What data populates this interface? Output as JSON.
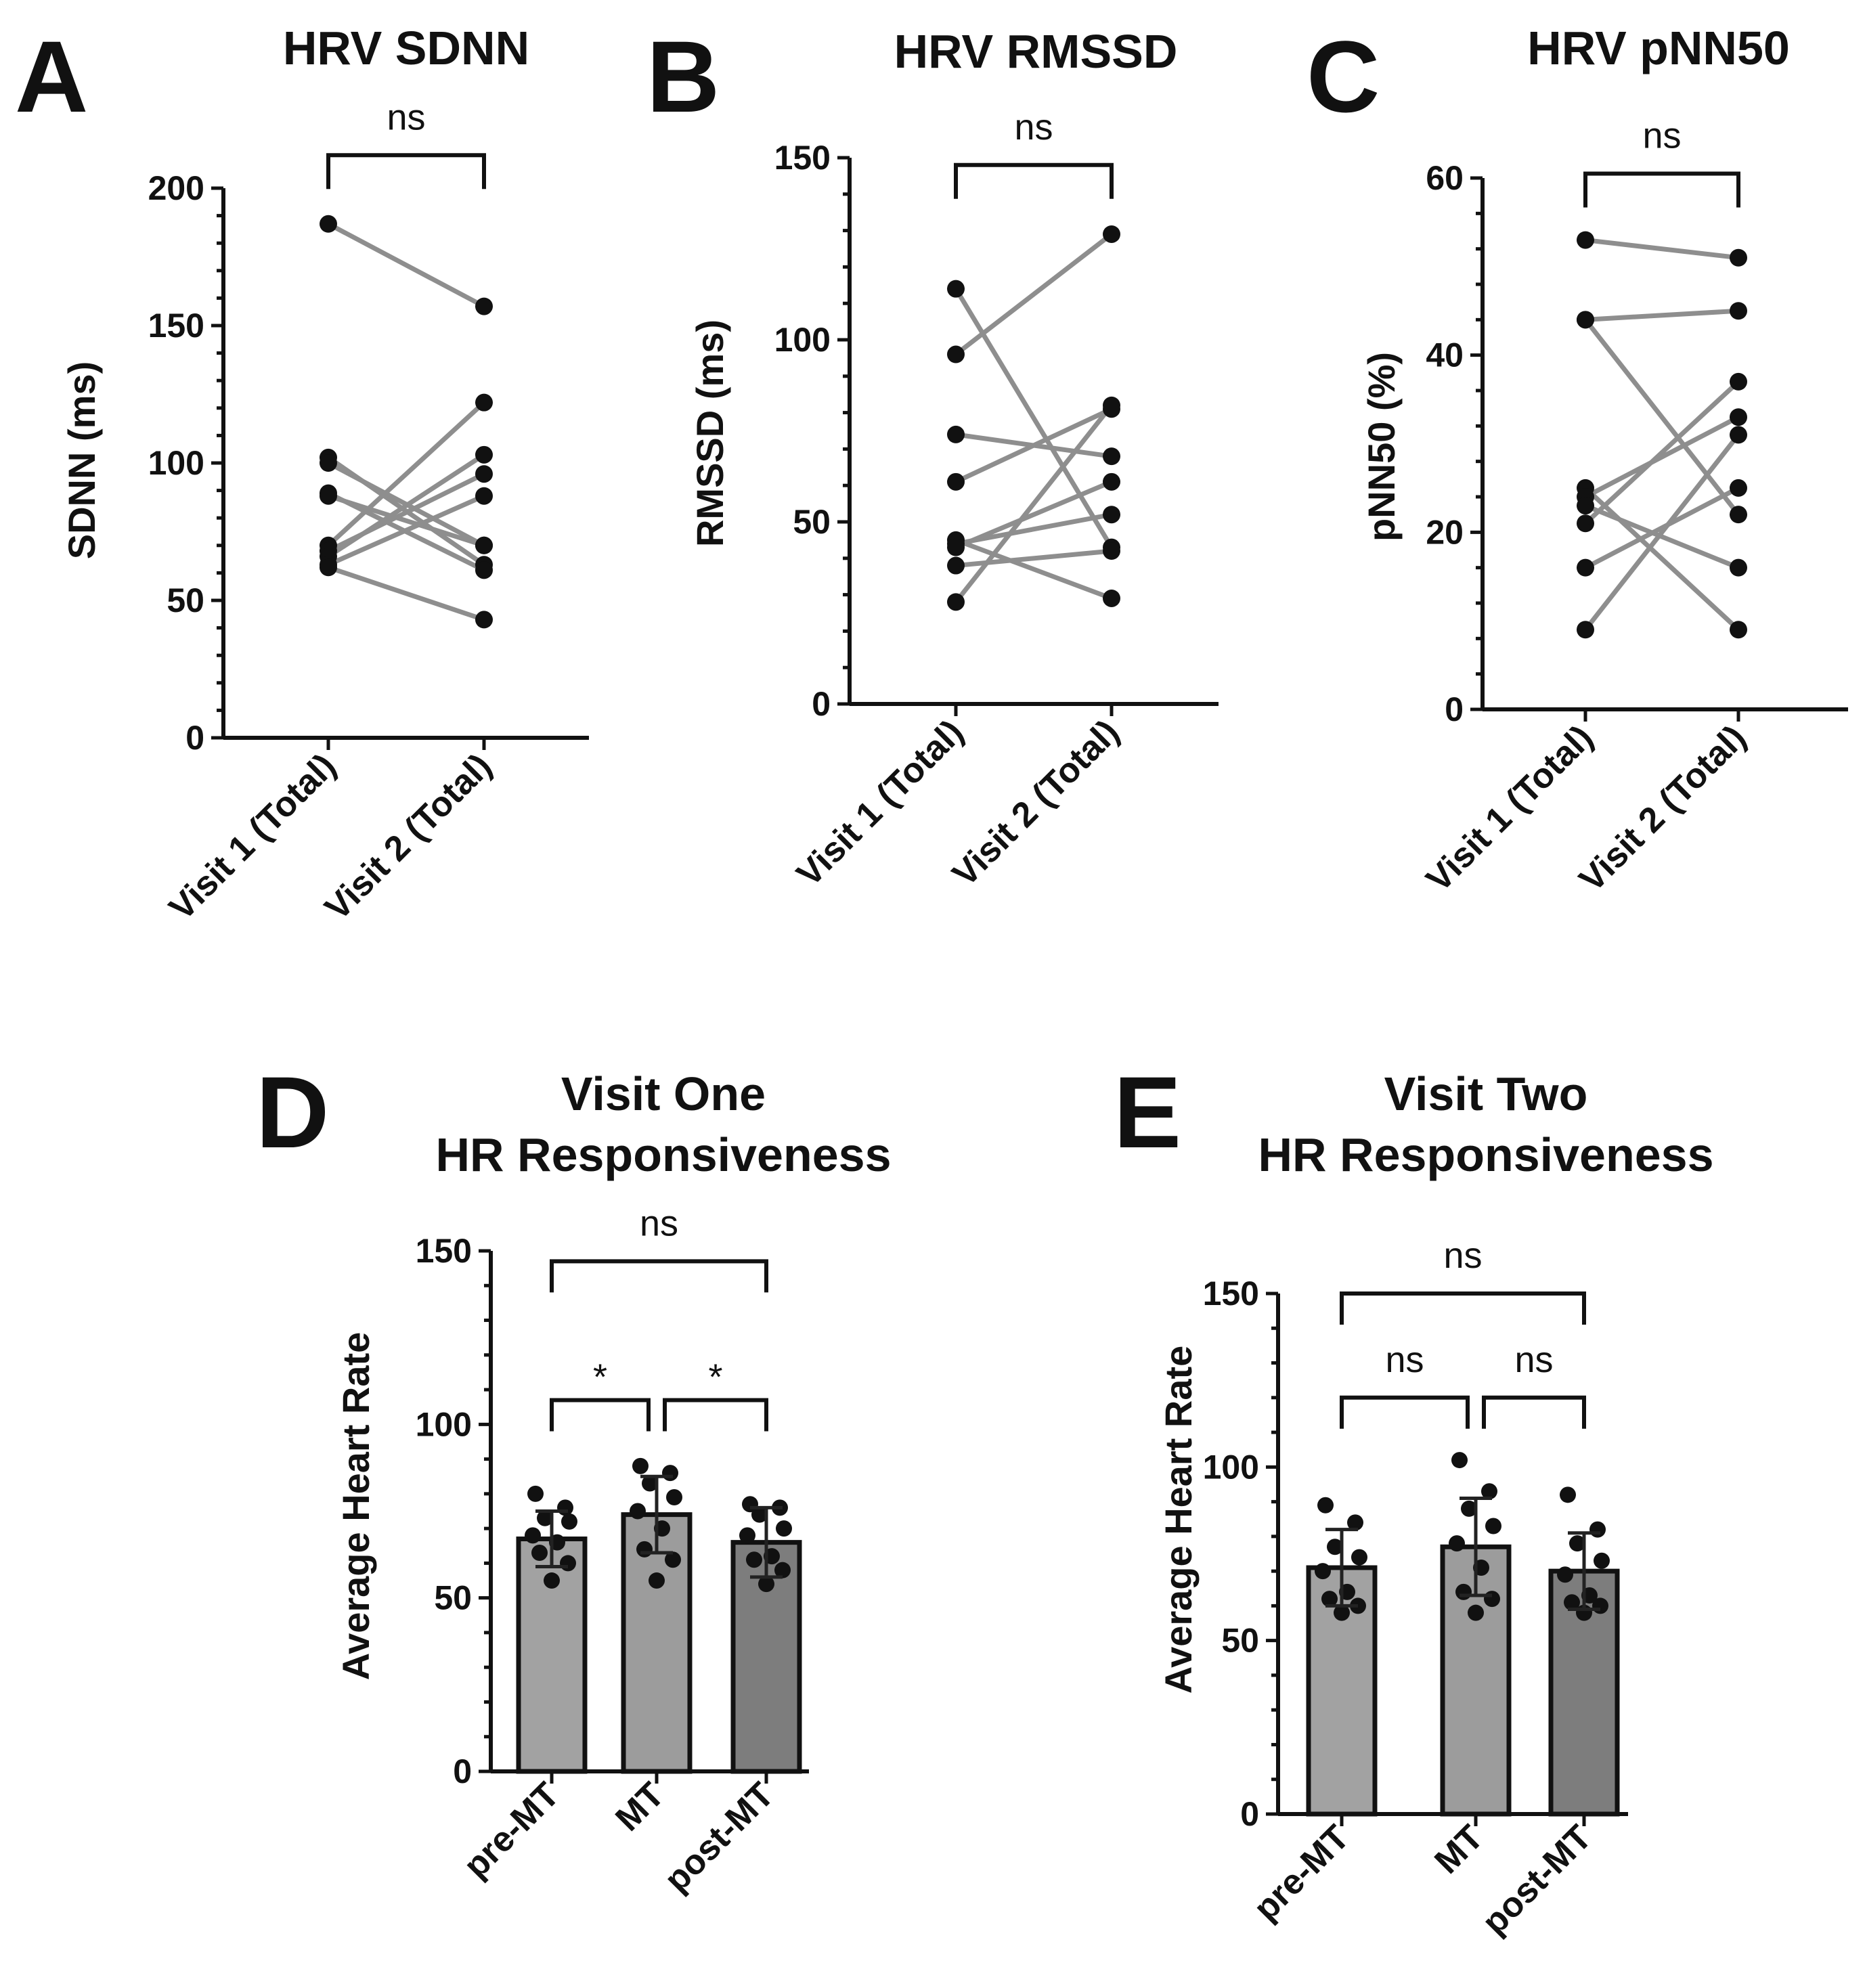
{
  "colors": {
    "ink": "#111111",
    "pair_line": "#8e8e8e",
    "bar_light": "#a2a2a2",
    "bar_mid": "#9c9c9c",
    "bar_dark": "#7d7d7d"
  },
  "chart_data": [
    {
      "id": "A",
      "type": "scatter",
      "panel_letter": "A",
      "title": "HRV SDNN",
      "ylabel": "SDNN  (ms)",
      "xlabel": "",
      "categories": [
        "Visit 1 (Total)",
        "Visit 2 (Total)"
      ],
      "ylim": [
        0,
        200
      ],
      "yticks": [
        0,
        50,
        100,
        150,
        200
      ],
      "minor_step": 10,
      "pairs": [
        [
          187,
          157
        ],
        [
          102,
          63
        ],
        [
          100,
          70
        ],
        [
          89,
          61
        ],
        [
          88,
          70
        ],
        [
          70,
          122
        ],
        [
          68,
          96
        ],
        [
          66,
          103
        ],
        [
          63,
          88
        ],
        [
          62,
          43
        ]
      ],
      "significance": [
        {
          "from": 0,
          "to": 1,
          "label": "ns",
          "y": 212
        }
      ]
    },
    {
      "id": "B",
      "type": "scatter",
      "panel_letter": "B",
      "title": "HRV  RMSSD",
      "ylabel": "RMSSD (ms)",
      "xlabel": "",
      "categories": [
        "Visit 1 (Total)",
        "Visit 2 (Total)"
      ],
      "ylim": [
        0,
        150
      ],
      "yticks": [
        0,
        50,
        100,
        150
      ],
      "minor_step": 10,
      "pairs": [
        [
          114,
          43
        ],
        [
          96,
          129
        ],
        [
          74,
          68
        ],
        [
          61,
          81
        ],
        [
          45,
          29
        ],
        [
          44,
          52
        ],
        [
          43,
          61
        ],
        [
          38,
          42
        ],
        [
          28,
          82
        ]
      ],
      "significance": [
        {
          "from": 0,
          "to": 1,
          "label": "ns",
          "y": 148
        }
      ]
    },
    {
      "id": "C",
      "type": "scatter",
      "panel_letter": "C",
      "title": "HRV  pNN50",
      "ylabel": "pNN50  (%)",
      "xlabel": "",
      "categories": [
        "Visit 1 (Total)",
        "Visit 2 (Total)"
      ],
      "ylim": [
        0,
        60
      ],
      "yticks": [
        0,
        20,
        40,
        60
      ],
      "minor_step": 4,
      "pairs": [
        [
          53,
          51
        ],
        [
          44,
          45
        ],
        [
          44,
          22
        ],
        [
          25,
          9
        ],
        [
          24,
          33
        ],
        [
          23,
          16
        ],
        [
          21,
          37
        ],
        [
          16,
          25
        ],
        [
          9,
          31
        ]
      ],
      "significance": [
        {
          "from": 0,
          "to": 1,
          "label": "ns",
          "y": 60.5
        }
      ]
    },
    {
      "id": "D",
      "type": "bar",
      "panel_letter": "D",
      "title": [
        "Visit One",
        "HR Responsiveness"
      ],
      "ylabel": "Average Heart  Rate",
      "xlabel": "",
      "categories": [
        "pre-MT",
        "MT",
        "post-MT"
      ],
      "ylim": [
        0,
        150
      ],
      "yticks": [
        0,
        50,
        100,
        150
      ],
      "minor_step": 10,
      "values": [
        67,
        74,
        66
      ],
      "sd": [
        8,
        11,
        10
      ],
      "points": [
        [
          80,
          76,
          73,
          72,
          68,
          66,
          63,
          60,
          55
        ],
        [
          88,
          86,
          83,
          79,
          75,
          70,
          64,
          61,
          55
        ],
        [
          77,
          76,
          74,
          70,
          68,
          62,
          61,
          58,
          54
        ]
      ],
      "significance": [
        {
          "from": 0,
          "to": 1,
          "label": "*",
          "y": 107
        },
        {
          "from": 1,
          "to": 2,
          "label": "*",
          "y": 107
        },
        {
          "from": 0,
          "to": 2,
          "label": "ns",
          "y": 147
        }
      ]
    },
    {
      "id": "E",
      "type": "bar",
      "panel_letter": "E",
      "title": [
        "Visit Two",
        "HR Responsiveness"
      ],
      "ylabel": "Average Heart  Rate",
      "xlabel": "",
      "categories": [
        "pre-MT",
        "MT",
        "post-MT"
      ],
      "ylim": [
        0,
        150
      ],
      "yticks": [
        0,
        50,
        100,
        150
      ],
      "minor_step": 10,
      "values": [
        71,
        77,
        70
      ],
      "sd": [
        11,
        14,
        11
      ],
      "points": [
        [
          89,
          84,
          77,
          74,
          70,
          64,
          62,
          60,
          58
        ],
        [
          102,
          93,
          88,
          83,
          78,
          71,
          64,
          62,
          58
        ],
        [
          92,
          82,
          78,
          73,
          69,
          63,
          61,
          60,
          58
        ]
      ],
      "significance": [
        {
          "from": 0,
          "to": 1,
          "label": "ns",
          "y": 120
        },
        {
          "from": 1,
          "to": 2,
          "label": "ns",
          "y": 120
        },
        {
          "from": 0,
          "to": 2,
          "label": "ns",
          "y": 150
        }
      ]
    }
  ]
}
